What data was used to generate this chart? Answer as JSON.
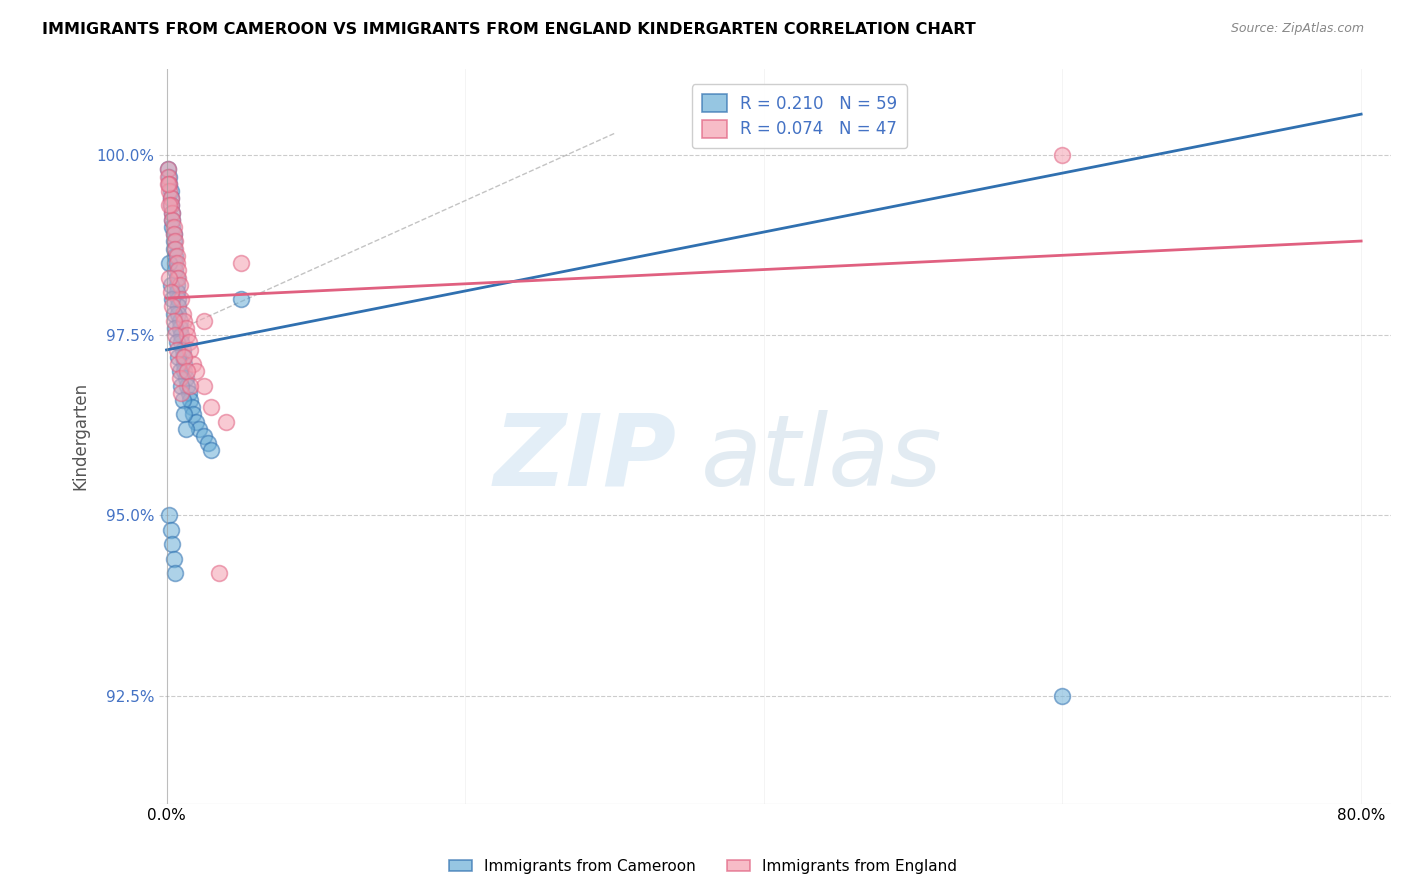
{
  "title": "IMMIGRANTS FROM CAMEROON VS IMMIGRANTS FROM ENGLAND KINDERGARTEN CORRELATION CHART",
  "source": "Source: ZipAtlas.com",
  "ylabel": "Kindergarten",
  "y_ticks": [
    92.5,
    95.0,
    97.5,
    100.0
  ],
  "y_tick_labels": [
    "92.5%",
    "95.0%",
    "97.5%",
    "100.0%"
  ],
  "legend_blue": "R = 0.210   N = 59",
  "legend_pink": "R = 0.074   N = 47",
  "R_blue": 0.21,
  "R_pink": 0.074,
  "blue_color": "#6aaed6",
  "pink_color": "#f4a0b0",
  "blue_line_color": "#3070b0",
  "pink_line_color": "#e06080",
  "blue_x": [
    0.001,
    0.002,
    0.002,
    0.003,
    0.003,
    0.003,
    0.004,
    0.004,
    0.004,
    0.005,
    0.005,
    0.005,
    0.006,
    0.006,
    0.006,
    0.007,
    0.007,
    0.007,
    0.008,
    0.008,
    0.008,
    0.009,
    0.009,
    0.01,
    0.01,
    0.011,
    0.011,
    0.012,
    0.012,
    0.013,
    0.014,
    0.015,
    0.016,
    0.017,
    0.018,
    0.02,
    0.022,
    0.025,
    0.028,
    0.03,
    0.002,
    0.003,
    0.004,
    0.005,
    0.006,
    0.007,
    0.008,
    0.009,
    0.01,
    0.011,
    0.012,
    0.013,
    0.05,
    0.002,
    0.003,
    0.004,
    0.005,
    0.006,
    0.6
  ],
  "blue_y": [
    99.8,
    99.7,
    99.6,
    99.5,
    99.4,
    99.3,
    99.2,
    99.1,
    99.0,
    98.9,
    98.8,
    98.7,
    98.6,
    98.5,
    98.4,
    98.3,
    98.2,
    98.1,
    98.0,
    97.9,
    97.8,
    97.7,
    97.6,
    97.5,
    97.4,
    97.3,
    97.2,
    97.1,
    97.0,
    96.9,
    96.8,
    96.7,
    96.6,
    96.5,
    96.4,
    96.3,
    96.2,
    96.1,
    96.0,
    95.9,
    98.5,
    98.2,
    98.0,
    97.8,
    97.6,
    97.4,
    97.2,
    97.0,
    96.8,
    96.6,
    96.4,
    96.2,
    98.0,
    95.0,
    94.8,
    94.6,
    94.4,
    94.2,
    92.5
  ],
  "pink_x": [
    0.001,
    0.001,
    0.002,
    0.002,
    0.003,
    0.003,
    0.004,
    0.004,
    0.005,
    0.005,
    0.006,
    0.006,
    0.007,
    0.007,
    0.008,
    0.008,
    0.009,
    0.01,
    0.011,
    0.012,
    0.013,
    0.014,
    0.015,
    0.016,
    0.018,
    0.02,
    0.025,
    0.03,
    0.04,
    0.05,
    0.002,
    0.003,
    0.004,
    0.005,
    0.006,
    0.007,
    0.008,
    0.009,
    0.01,
    0.025,
    0.035,
    0.012,
    0.014,
    0.016,
    0.6,
    0.001,
    0.002
  ],
  "pink_y": [
    99.8,
    99.7,
    99.6,
    99.5,
    99.4,
    99.3,
    99.2,
    99.1,
    99.0,
    98.9,
    98.8,
    98.7,
    98.6,
    98.5,
    98.4,
    98.3,
    98.2,
    98.0,
    97.8,
    97.7,
    97.6,
    97.5,
    97.4,
    97.3,
    97.1,
    97.0,
    96.8,
    96.5,
    96.3,
    98.5,
    98.3,
    98.1,
    97.9,
    97.7,
    97.5,
    97.3,
    97.1,
    96.9,
    96.7,
    97.7,
    94.2,
    97.2,
    97.0,
    96.8,
    100.0,
    99.6,
    99.3
  ]
}
